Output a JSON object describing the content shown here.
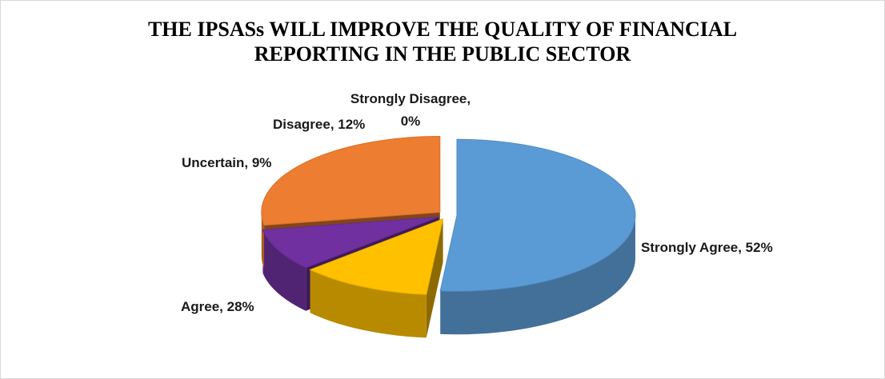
{
  "chart_data": {
    "type": "pie",
    "style": "3d-exploded",
    "title_lines": [
      "THE IPSASs WILL IMPROVE THE QUALITY OF FINANCIAL",
      "REPORTING IN THE PUBLIC SECTOR"
    ],
    "slices": [
      {
        "name": "Strongly Agree",
        "value": 52,
        "label": "Strongly Agree, 52%",
        "color": "#5B9BD5"
      },
      {
        "name": "Strongly Disagree",
        "value": 0,
        "label": "Strongly Disagree, 0%",
        "color": "#4472C4"
      },
      {
        "name": "Disagree",
        "value": 12,
        "label": "Disagree, 12%",
        "color": "#FFC000"
      },
      {
        "name": "Uncertain",
        "value": 9,
        "label": "Uncertain, 9%",
        "color": "#7030A0"
      },
      {
        "name": "Agree",
        "value": 28,
        "label": "Agree, 28%",
        "color": "#ED7D31"
      }
    ],
    "legend": "none",
    "data_labels": "outside, category name and percentage"
  }
}
